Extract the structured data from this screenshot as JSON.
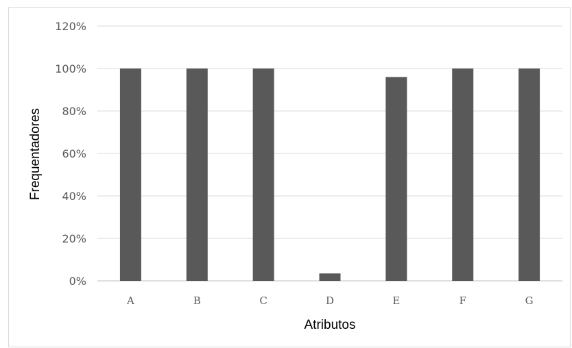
{
  "chart_data": {
    "type": "bar",
    "title": "",
    "xlabel": "Atributos",
    "ylabel": "Frequentadores",
    "categories": [
      "A",
      "B",
      "C",
      "D",
      "E",
      "F",
      "G"
    ],
    "values": [
      100,
      100,
      100,
      3.5,
      96,
      100,
      100
    ],
    "ylim": [
      0,
      120
    ],
    "yticks": [
      0,
      20,
      40,
      60,
      80,
      100,
      120
    ],
    "ytick_labels": [
      "0%",
      "20%",
      "40%",
      "60%",
      "80%",
      "100%",
      "120%"
    ],
    "grid": true,
    "legend": "none",
    "bar_color": "#595959"
  }
}
